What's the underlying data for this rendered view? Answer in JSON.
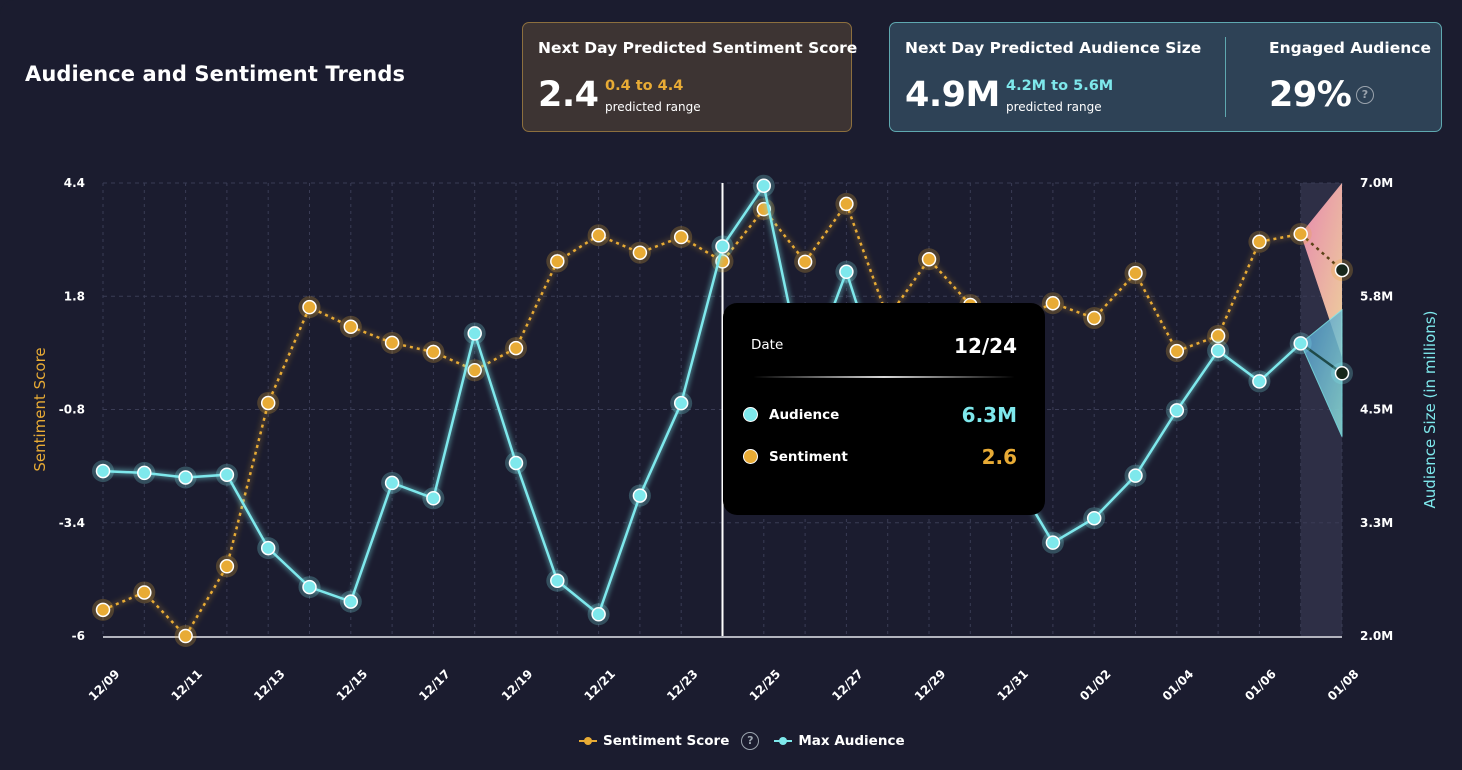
{
  "header": {
    "title": "Audience and Sentiment Trends"
  },
  "sentiment_card": {
    "label": "Next Day Predicted Sentiment Score",
    "value": "2.4",
    "range": "0.4 to 4.4",
    "range_caption": "predicted range"
  },
  "audience_card": {
    "label": "Next Day Predicted Audience Size",
    "value": "4.9M",
    "range": "4.2M to 5.6M",
    "range_caption": "predicted range",
    "engaged_label": "Engaged Audience",
    "engaged_value": "29%",
    "help_icon": "?"
  },
  "tooltip": {
    "date_label": "Date",
    "date": "12/24",
    "rows": [
      {
        "name": "Audience",
        "value": "6.3M"
      },
      {
        "name": "Sentiment",
        "value": "2.6"
      }
    ]
  },
  "legend": {
    "items": [
      {
        "label": "Sentiment Score"
      },
      {
        "label": "Max Audience"
      }
    ],
    "help_icon": "?"
  },
  "colors": {
    "sentiment": "#e8ab35",
    "audience": "#7ee8ec",
    "forecast_date": "#b9b3f0",
    "background": "#1b1c2f"
  },
  "chart_data": {
    "type": "line",
    "title": "Audience and Sentiment Trends",
    "xlabel": "",
    "ylabel_left": "Sentiment Score",
    "ylabel_right": "Audience Size (in millions)",
    "ylim_left": [
      -6,
      4.4
    ],
    "ylim_right": [
      2.0,
      7.0
    ],
    "yticks_left": [
      "4.4",
      "1.8",
      "-0.8",
      "-3.4",
      "-6"
    ],
    "yticks_right": [
      "7.0M",
      "5.8M",
      "4.5M",
      "3.3M",
      "2.0M"
    ],
    "x": [
      "12/09",
      "12/10",
      "12/11",
      "12/12",
      "12/13",
      "12/14",
      "12/15",
      "12/16",
      "12/17",
      "12/18",
      "12/19",
      "12/20",
      "12/21",
      "12/22",
      "12/23",
      "12/24",
      "12/25",
      "12/26",
      "12/27",
      "12/28",
      "12/29",
      "12/30",
      "12/31",
      "01/01",
      "01/02",
      "01/03",
      "01/04",
      "01/05",
      "01/06",
      "01/07",
      "01/08"
    ],
    "xtick_labels": [
      "12/09",
      "12/11",
      "12/13",
      "12/15",
      "12/17",
      "12/19",
      "12/21",
      "12/23",
      "12/25",
      "12/27",
      "12/29",
      "12/31",
      "01/02",
      "01/04",
      "01/06",
      "01/08"
    ],
    "grid": true,
    "legend_position": "bottom-center",
    "series": [
      {
        "name": "Sentiment Score",
        "axis": "left",
        "style": "dotted",
        "values": [
          -5.4,
          -5.0,
          -6.0,
          -4.4,
          -0.65,
          1.55,
          1.1,
          0.73,
          0.52,
          0.1,
          0.61,
          2.6,
          3.2,
          2.8,
          3.16,
          2.6,
          3.8,
          2.59,
          3.92,
          1.3,
          2.65,
          1.6,
          1.2,
          1.64,
          1.3,
          2.33,
          0.54,
          0.89,
          3.05,
          3.23,
          2.4
        ]
      },
      {
        "name": "Max Audience",
        "axis": "right",
        "unit": "M",
        "style": "solid",
        "values": [
          3.82,
          3.8,
          3.75,
          3.78,
          2.97,
          2.54,
          2.38,
          3.69,
          3.52,
          5.34,
          3.91,
          2.61,
          2.24,
          3.55,
          4.57,
          6.3,
          6.97,
          4.8,
          6.02,
          4.6,
          4.5,
          4.3,
          3.8,
          3.03,
          3.3,
          3.77,
          4.49,
          5.15,
          4.81,
          5.23,
          4.9
        ]
      }
    ],
    "forecast": {
      "date": "01/08",
      "sentiment": {
        "value": 2.4,
        "low": 0.4,
        "high": 4.4
      },
      "audience": {
        "value": 4.9,
        "low": 4.2,
        "high": 5.6
      }
    },
    "hover_marker": "12/24"
  }
}
